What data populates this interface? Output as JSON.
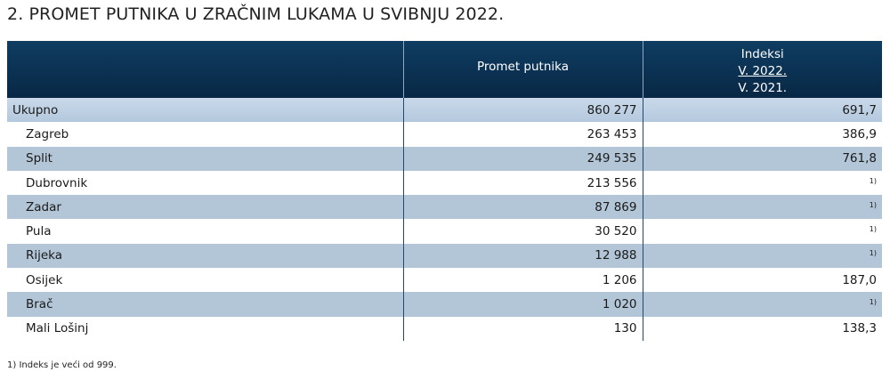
{
  "title": "2. PROMET PUTNIKA U ZRAČNIM LUKAMA U SVIBNJU 2022.",
  "table": {
    "headers": {
      "col1": "",
      "col2": "Promet putnika",
      "col3_line1": "Indeksi",
      "col3_line2": "V. 2022.",
      "col3_line3": "V. 2021."
    },
    "rows": [
      {
        "label": "Ukupno",
        "promet": "860 277",
        "indeks": "691,7",
        "indeks_note": ""
      },
      {
        "label": "Zagreb",
        "promet": "263 453",
        "indeks": "386,9",
        "indeks_note": ""
      },
      {
        "label": "Split",
        "promet": "249 535",
        "indeks": "761,8",
        "indeks_note": ""
      },
      {
        "label": "Dubrovnik",
        "promet": "213 556",
        "indeks": "",
        "indeks_note": "1)"
      },
      {
        "label": "Zadar",
        "promet": "87 869",
        "indeks": "",
        "indeks_note": "1)"
      },
      {
        "label": "Pula",
        "promet": "30 520",
        "indeks": "",
        "indeks_note": "1)"
      },
      {
        "label": "Rijeka",
        "promet": "12 988",
        "indeks": "",
        "indeks_note": "1)"
      },
      {
        "label": "Osijek",
        "promet": "1 206",
        "indeks": "187,0",
        "indeks_note": ""
      },
      {
        "label": "Brač",
        "promet": "1 020",
        "indeks": "",
        "indeks_note": "1)"
      },
      {
        "label": "Mali Lošinj",
        "promet": "130",
        "indeks": "138,3",
        "indeks_note": ""
      }
    ]
  },
  "footnote": "1) Indeks je veći od 999.",
  "colors": {
    "header_bg": "#0b3152",
    "shaded_row": "#b3c6d8",
    "total_row": "#c4d5e7"
  }
}
